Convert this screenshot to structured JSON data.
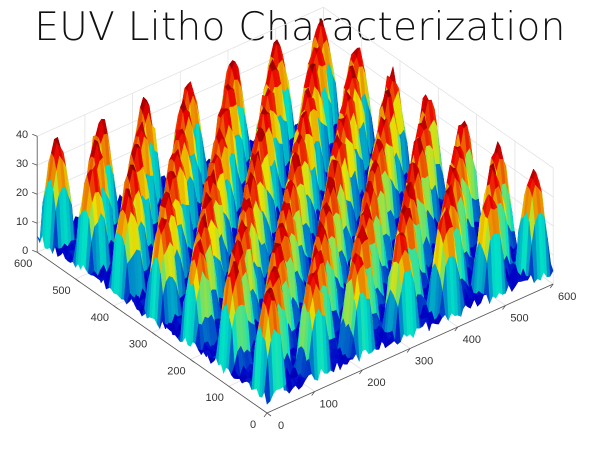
{
  "chart_data": {
    "type": "surface",
    "title": "EUV Litho Characterization",
    "xlabel": "",
    "ylabel": "",
    "zlabel": "",
    "xlim": [
      0,
      600
    ],
    "ylim": [
      0,
      600
    ],
    "zlim": [
      0,
      40
    ],
    "xticks": [
      "0",
      "100",
      "200",
      "300",
      "400",
      "500",
      "600"
    ],
    "yticks": [
      "0",
      "100",
      "200",
      "300",
      "400",
      "500",
      "600"
    ],
    "zticks": [
      "0",
      "10",
      "20",
      "30",
      "40"
    ],
    "colormap": "jet",
    "grid": true
  }
}
